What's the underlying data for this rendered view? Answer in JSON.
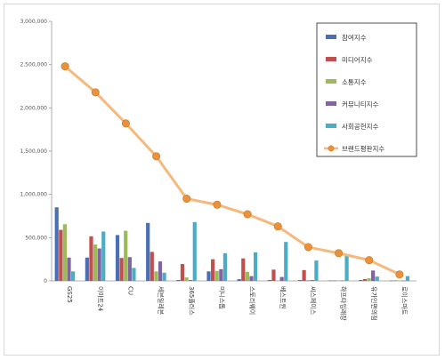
{
  "chart_data": {
    "type": "bar",
    "categories": [
      "GS25",
      "이마트24",
      "CU",
      "세븐일레븐",
      "365플러스",
      "미니스톱",
      "스토리웨이",
      "베스트원",
      "씨스페이스",
      "하프타임래장",
      "유가인편의점",
      "로이스마트"
    ],
    "ylim": [
      0,
      3000000
    ],
    "yticks": [
      0,
      500000,
      1000000,
      1500000,
      2000000,
      2500000,
      3000000
    ],
    "ytick_labels": [
      "0",
      "500,000",
      "1,000,000",
      "1,500,000",
      "2,000,000",
      "2,500,000",
      "3,000,000"
    ],
    "grid": false,
    "legend_position": "top-right",
    "series": [
      {
        "name": "참여지수",
        "kind": "bar",
        "color": "#4a6fb5",
        "values": [
          850000,
          270000,
          530000,
          670000,
          10000,
          110000,
          20000,
          10000,
          10000,
          5000,
          10000,
          5000
        ]
      },
      {
        "name": "미디어지수",
        "kind": "bar",
        "color": "#c0504d",
        "values": [
          590000,
          515000,
          265000,
          335000,
          195000,
          250000,
          260000,
          130000,
          125000,
          5000,
          20000,
          5000
        ]
      },
      {
        "name": "소통지수",
        "kind": "bar",
        "color": "#9bbb59",
        "values": [
          655000,
          420000,
          580000,
          110000,
          40000,
          115000,
          105000,
          5000,
          10000,
          5000,
          30000,
          5000
        ]
      },
      {
        "name": "커뮤니티지수",
        "kind": "bar",
        "color": "#8064a2",
        "values": [
          270000,
          375000,
          275000,
          225000,
          10000,
          135000,
          55000,
          45000,
          10000,
          5000,
          120000,
          5000
        ]
      },
      {
        "name": "사회공헌지수",
        "kind": "bar",
        "color": "#4bacc6",
        "values": [
          110000,
          570000,
          150000,
          95000,
          680000,
          320000,
          330000,
          450000,
          235000,
          300000,
          50000,
          55000
        ]
      },
      {
        "name": "브랜드평판지수",
        "kind": "line",
        "color": "#f79646",
        "values": [
          2480000,
          2180000,
          1820000,
          1440000,
          950000,
          880000,
          770000,
          630000,
          390000,
          320000,
          240000,
          75000
        ]
      }
    ]
  }
}
